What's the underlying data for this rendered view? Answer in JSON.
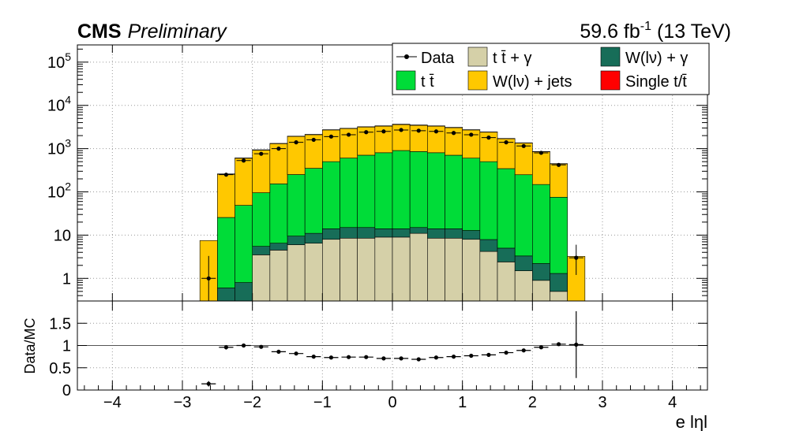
{
  "header": {
    "experiment": "CMS",
    "status": "Preliminary",
    "lumi_prefix": "59.6 fb",
    "lumi_exp": "-1",
    "lumi_suffix": " (13 TeV)"
  },
  "chart_data": {
    "type": "bar",
    "xlabel": "e lηl",
    "xlim": [
      -4.5,
      4.5
    ],
    "x_ticks": [
      "−4",
      "−3",
      "−2",
      "−1",
      "0",
      "1",
      "2",
      "3",
      "4"
    ],
    "bin_edges": [
      -2.75,
      -2.5,
      -2.25,
      -2.0,
      -1.75,
      -1.5,
      -1.25,
      -1.0,
      -0.75,
      -0.5,
      -0.25,
      0.0,
      0.25,
      0.5,
      0.75,
      1.0,
      1.25,
      1.5,
      1.75,
      2.0,
      2.25,
      2.5,
      2.75
    ],
    "top_panel": {
      "yscale": "log",
      "ylim": [
        0.3,
        250000
      ],
      "y_ticks": [
        {
          "value": 1,
          "label": "1"
        },
        {
          "value": 10,
          "label": "10"
        },
        {
          "value": 100,
          "label": "10",
          "exp": "2"
        },
        {
          "value": 1000,
          "label": "10",
          "exp": "3"
        },
        {
          "value": 10000,
          "label": "10",
          "exp": "4"
        },
        {
          "value": 100000,
          "label": "10",
          "exp": "5"
        }
      ],
      "stack_order": [
        "tt_gamma",
        "w_gamma",
        "tt",
        "w_jets",
        "single_t"
      ],
      "series": [
        {
          "key": "tt_gamma",
          "name": "t t̄ + γ",
          "color": "#d5d0a8",
          "values": [
            0,
            0.3,
            0.15,
            3.5,
            4.5,
            6,
            6.5,
            8,
            8.5,
            8.5,
            9,
            9,
            11,
            8.5,
            8.5,
            8,
            4.2,
            2.4,
            1.5,
            0.9,
            0.5,
            0.01
          ]
        },
        {
          "key": "w_gamma",
          "name": "W(lν) + γ",
          "color": "#176d58",
          "values": [
            0,
            0.3,
            0.65,
            2.0,
            2.0,
            3.5,
            4.5,
            6,
            6.5,
            6.5,
            5,
            5,
            4,
            5.5,
            5.5,
            4.8,
            3.7,
            2.6,
            1.8,
            1.3,
            0.8,
            0.01
          ]
        },
        {
          "key": "tt",
          "name": "t t̄",
          "color": "#00dc38",
          "values": [
            0,
            25,
            48,
            90,
            147,
            242,
            340,
            486,
            590,
            690,
            790,
            890,
            840,
            790,
            690,
            590,
            492,
            340,
            246,
            146,
            74,
            0
          ]
        },
        {
          "key": "w_jets",
          "name": "W(lν) + jets",
          "color": "#ffc800",
          "values": [
            7.5,
            230,
            550,
            830,
            1150,
            1660,
            1750,
            2200,
            2300,
            2450,
            2500,
            2700,
            2600,
            2500,
            2350,
            2100,
            1900,
            1350,
            1100,
            700,
            370,
            3.2
          ]
        },
        {
          "key": "single_t",
          "name": "Single t/t̄",
          "color": "#ff0000",
          "values": [
            0,
            5,
            10,
            15,
            20,
            30,
            35,
            40,
            50,
            55,
            65,
            70,
            70,
            60,
            50,
            40,
            35,
            25,
            15,
            10,
            5,
            0
          ]
        }
      ],
      "data": {
        "name": "Data",
        "values": [
          1.0,
          250,
          530,
          760,
          1000,
          1400,
          1600,
          1900,
          2100,
          2400,
          2500,
          2700,
          2600,
          2500,
          2300,
          2100,
          1800,
          1400,
          1150,
          800,
          420,
          3.0
        ],
        "errors_low": [
          0.8,
          16,
          23,
          28,
          32,
          37,
          40,
          44,
          46,
          49,
          50,
          52,
          51,
          50,
          48,
          46,
          42,
          37,
          34,
          28,
          20,
          1.8
        ],
        "errors_high": [
          2.3,
          16,
          23,
          28,
          32,
          37,
          40,
          44,
          46,
          49,
          50,
          52,
          51,
          50,
          48,
          46,
          42,
          37,
          34,
          28,
          20,
          3.0
        ]
      }
    },
    "ratio_panel": {
      "ylabel": "Data/MC",
      "ylim": [
        0,
        2
      ],
      "y_ticks": [
        {
          "value": 0,
          "label": "0"
        },
        {
          "value": 0.5,
          "label": "0.5"
        },
        {
          "value": 1,
          "label": "1"
        },
        {
          "value": 1.5,
          "label": "1.5"
        }
      ],
      "reference_line": 1,
      "points": [
        {
          "x": -2.625,
          "y": 0.14,
          "err": 0.06
        },
        {
          "x": -2.375,
          "y": 0.96,
          "err": 0.05
        },
        {
          "x": -2.125,
          "y": 1.0,
          "err": 0.03
        },
        {
          "x": -1.875,
          "y": 0.97,
          "err": 0.03
        },
        {
          "x": -1.625,
          "y": 0.86,
          "err": 0.02
        },
        {
          "x": -1.375,
          "y": 0.82,
          "err": 0.02
        },
        {
          "x": -1.125,
          "y": 0.75,
          "err": 0.02
        },
        {
          "x": -0.875,
          "y": 0.73,
          "err": 0.02
        },
        {
          "x": -0.625,
          "y": 0.74,
          "err": 0.02
        },
        {
          "x": -0.375,
          "y": 0.74,
          "err": 0.02
        },
        {
          "x": -0.125,
          "y": 0.71,
          "err": 0.02
        },
        {
          "x": 0.125,
          "y": 0.71,
          "err": 0.02
        },
        {
          "x": 0.375,
          "y": 0.69,
          "err": 0.02
        },
        {
          "x": 0.625,
          "y": 0.73,
          "err": 0.02
        },
        {
          "x": 0.875,
          "y": 0.75,
          "err": 0.02
        },
        {
          "x": 1.125,
          "y": 0.77,
          "err": 0.02
        },
        {
          "x": 1.375,
          "y": 0.79,
          "err": 0.02
        },
        {
          "x": 1.625,
          "y": 0.84,
          "err": 0.02
        },
        {
          "x": 1.875,
          "y": 0.89,
          "err": 0.02
        },
        {
          "x": 2.125,
          "y": 0.96,
          "err": 0.03
        },
        {
          "x": 2.375,
          "y": 1.03,
          "err": 0.04
        },
        {
          "x": 2.625,
          "y": 1.02,
          "err": 0.75
        }
      ]
    },
    "legend": {
      "placement": "top-right",
      "columns": 3,
      "entries": [
        {
          "label": "Data",
          "kind": "marker",
          "color": "#000000"
        },
        {
          "label": "t t̄ + γ",
          "kind": "box",
          "color": "#d5d0a8"
        },
        {
          "label": "W(lν) + γ",
          "kind": "box",
          "color": "#176d58"
        },
        {
          "label": "t t̄",
          "kind": "box",
          "color": "#00dc38"
        },
        {
          "label": "W(lν) + jets",
          "kind": "box",
          "color": "#ffc800"
        },
        {
          "label": "Single t/t̄",
          "kind": "box",
          "color": "#ff0000"
        }
      ]
    },
    "grid": {
      "x": true,
      "y": true,
      "style": "dotted"
    }
  }
}
